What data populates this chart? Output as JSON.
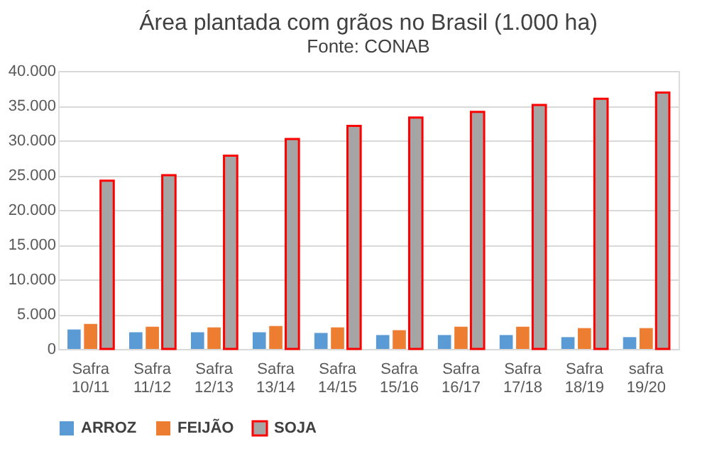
{
  "chart_data": {
    "type": "bar",
    "title": "Área plantada com grãos  no Brasil (1.000 ha)",
    "subtitle": "Fonte: CONAB",
    "categories": [
      "Safra 10/11",
      "Safra 11/12",
      "Safra 12/13",
      "Safra 13/14",
      "Safra 14/15",
      "Safra 15/16",
      "Safra 16/17",
      "Safra 17/18",
      "Safra 18/19",
      "safra 19/20"
    ],
    "series": [
      {
        "name": "ARROZ",
        "color": "#5b9bd5",
        "values": [
          2800,
          2400,
          2400,
          2400,
          2300,
          2000,
          2000,
          2000,
          1700,
          1700
        ]
      },
      {
        "name": "FEIJÃO",
        "color": "#ed7d31",
        "values": [
          3600,
          3200,
          3100,
          3300,
          3100,
          2700,
          3200,
          3200,
          3000,
          3000
        ]
      },
      {
        "name": "SOJA",
        "color": "#a5a5a5",
        "values": [
          24200,
          25000,
          27800,
          30200,
          32100,
          33300,
          34100,
          35100,
          36000,
          36900
        ]
      }
    ],
    "ylim": [
      0,
      40000
    ],
    "yticks": [
      {
        "value": 0,
        "label": "0"
      },
      {
        "value": 5000,
        "label": "5.000"
      },
      {
        "value": 10000,
        "label": "10.000"
      },
      {
        "value": 15000,
        "label": "15.000"
      },
      {
        "value": 20000,
        "label": "20.000"
      },
      {
        "value": 25000,
        "label": "25.000"
      },
      {
        "value": 30000,
        "label": "30.000"
      },
      {
        "value": 35000,
        "label": "35.000"
      },
      {
        "value": 40000,
        "label": "40.000"
      }
    ],
    "grid": "y",
    "legend": "bottom"
  }
}
